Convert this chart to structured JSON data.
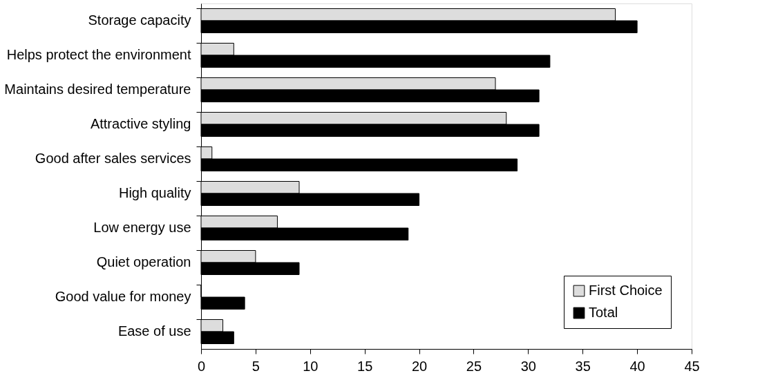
{
  "chart_data": {
    "type": "bar",
    "orientation": "horizontal",
    "categories": [
      "Storage capacity",
      "Helps protect the environment",
      "Maintains desired temperature",
      "Attractive styling",
      "Good after sales services",
      "High quality",
      "Low energy use",
      "Quiet operation",
      "Good value for money",
      "Ease of use"
    ],
    "series": [
      {
        "name": "First Choice",
        "color": "#dddddd",
        "values": [
          38,
          3,
          27,
          28,
          1,
          9,
          7,
          5,
          0,
          2
        ]
      },
      {
        "name": "Total",
        "color": "#000000",
        "values": [
          40,
          32,
          31,
          31,
          29,
          20,
          19,
          9,
          4,
          3
        ]
      }
    ],
    "xlim": [
      0,
      45
    ],
    "xticks": [
      0,
      5,
      10,
      15,
      20,
      25,
      30,
      35,
      40,
      45
    ],
    "grid": false,
    "legend": "bottom right"
  }
}
